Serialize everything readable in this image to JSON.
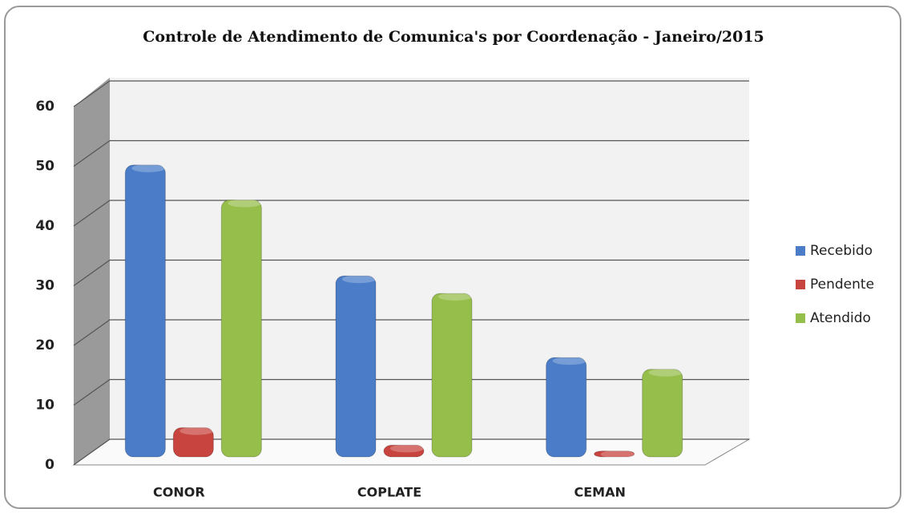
{
  "chart_data": {
    "type": "bar3d",
    "title": "Controle de Atendimento de Comunica's por Coordenação - Janeiro/2015",
    "categories": [
      "CONOR",
      "COPLATE",
      "CEMAN"
    ],
    "series": [
      {
        "name": "Recebido",
        "color": "#4a7cc8",
        "values": [
          50,
          31,
          17
        ]
      },
      {
        "name": "Pendente",
        "color": "#c8453f",
        "values": [
          5,
          2,
          1
        ]
      },
      {
        "name": "Atendido",
        "color": "#96be4a",
        "values": [
          44,
          28,
          15
        ]
      }
    ],
    "ylim": [
      0,
      60
    ],
    "yticks": [
      0,
      10,
      20,
      30,
      40,
      50,
      60
    ],
    "grid": true,
    "legend": "right"
  }
}
